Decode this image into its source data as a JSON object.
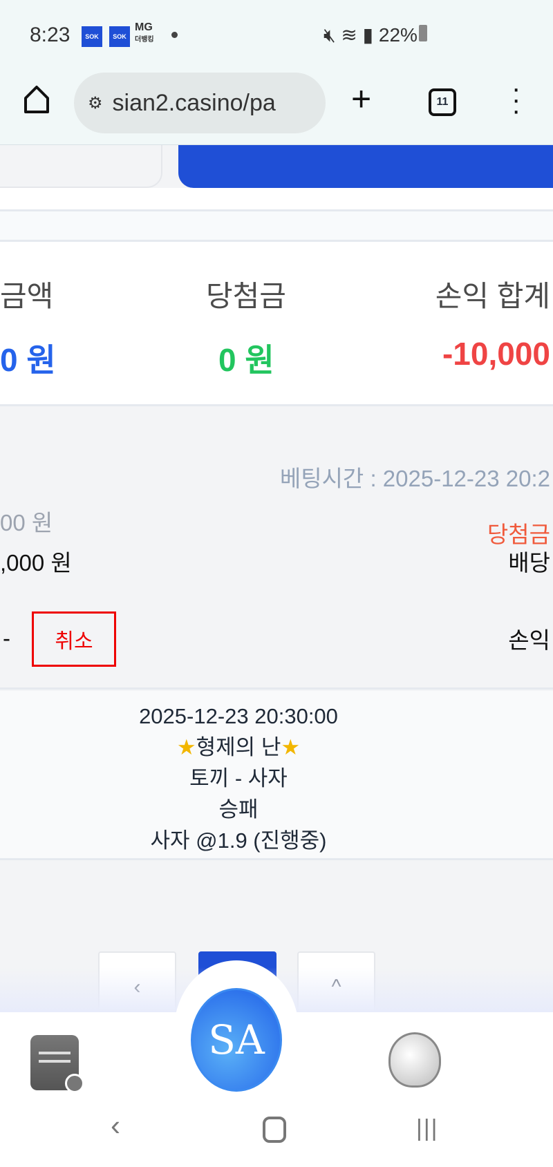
{
  "status_bar": {
    "time": "8:23",
    "notif_label": "MG",
    "notif_sub": "더뱅킹",
    "battery": "22%"
  },
  "browser": {
    "url": "sian2.casino/pa",
    "tab_count": "11"
  },
  "summary": {
    "items": [
      {
        "label": "금액",
        "value": "0 원",
        "color": "#2563eb"
      },
      {
        "label": "당첨금",
        "value": "0 원",
        "color": "#22c55e"
      },
      {
        "label": "손익 합계",
        "value": "-10,000",
        "color": "#ef4444"
      }
    ]
  },
  "bet": {
    "bet_time": "베팅시간 : 2025-12-23 20:2",
    "row1_left": "00 원",
    "row2_left": ",000 원",
    "row3_left": "-",
    "cancel_label": "취소",
    "row1_right": "당첨금",
    "row2_right": "배당",
    "row3_right": "손익"
  },
  "detail": {
    "datetime": "2025-12-23 20:30:00",
    "star": "★",
    "game": "형제의 난",
    "match": "토끼 - 사자",
    "market": "승패",
    "pick": "사자 @1.9 (진행중)"
  },
  "pagination": {
    "prev": "‹",
    "next": "^"
  },
  "bottom_nav": {
    "logo": "SA"
  },
  "system_nav": {
    "back": "‹",
    "home": "▢",
    "recents": "|||"
  },
  "colors": {
    "primary": "#1f4fd6",
    "cancel": "#e00000",
    "bet_time": "#94a3b8",
    "win_label": "#f05a3c"
  }
}
